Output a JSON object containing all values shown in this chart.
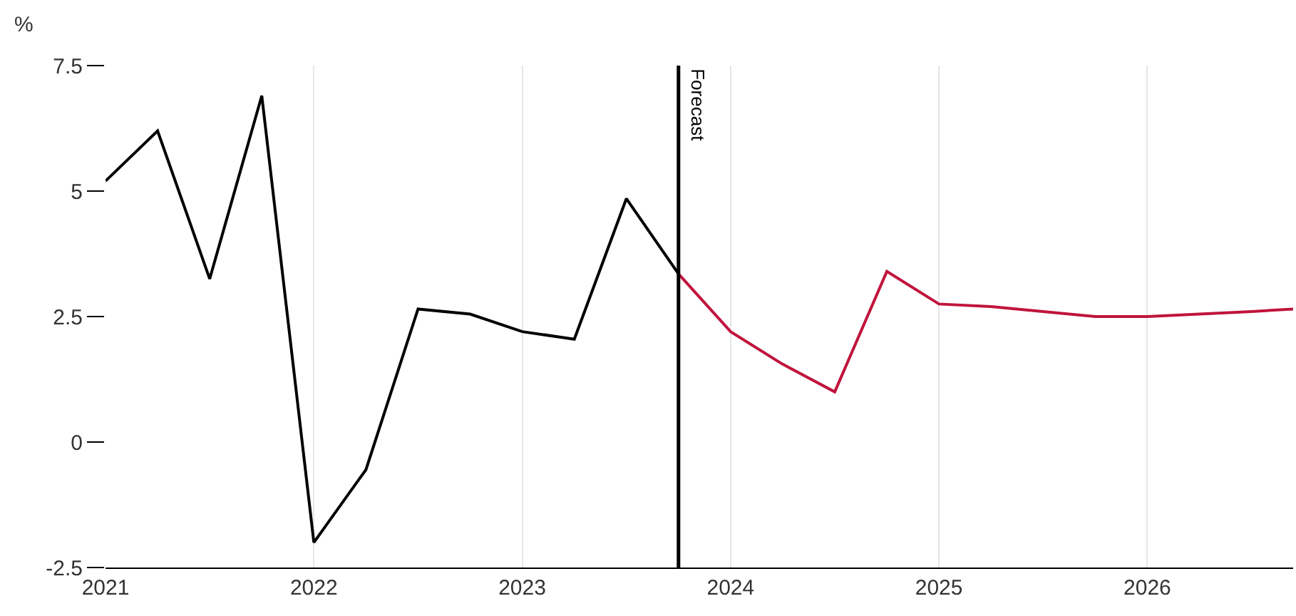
{
  "chart_data": {
    "type": "line",
    "ylabel": "%",
    "x": [
      2021,
      2021.25,
      2021.5,
      2021.75,
      2022,
      2022.25,
      2022.5,
      2022.75,
      2023,
      2023.25,
      2023.5,
      2023.75
    ],
    "series": [
      {
        "color": "#000000",
        "values": [
          5.2,
          6.2,
          3.25,
          6.9,
          -2.0,
          -0.55,
          2.65,
          2.55,
          2.2,
          2.05,
          4.85,
          3.35
        ]
      },
      {
        "color": "#c0143c",
        "x": [
          2023.75,
          2024,
          2024.25,
          2024.5,
          2024.75,
          2025,
          2025.25,
          2025.5,
          2025.75,
          2026,
          2026.25,
          2026.5,
          2026.7
        ],
        "values": [
          3.35,
          2.2,
          1.55,
          1.0,
          3.4,
          2.75,
          2.7,
          2.6,
          2.5,
          2.5,
          2.55,
          2.6,
          2.65
        ]
      }
    ],
    "xlim": [
      2021,
      2026.7
    ],
    "xticks": [
      2021,
      2022,
      2023,
      2024,
      2025,
      2026
    ],
    "ylim": [
      -2.5,
      7.5
    ],
    "yticks": [
      {
        "value": -2.5,
        "label": "-2.5"
      },
      0,
      2.5,
      5,
      7.5
    ],
    "ref_lines": [
      {
        "axis": "x",
        "value": 2023.75,
        "label": "Forecast",
        "color": "#000000"
      }
    ],
    "grid": "x",
    "marker": "none",
    "line_style": "solid"
  }
}
